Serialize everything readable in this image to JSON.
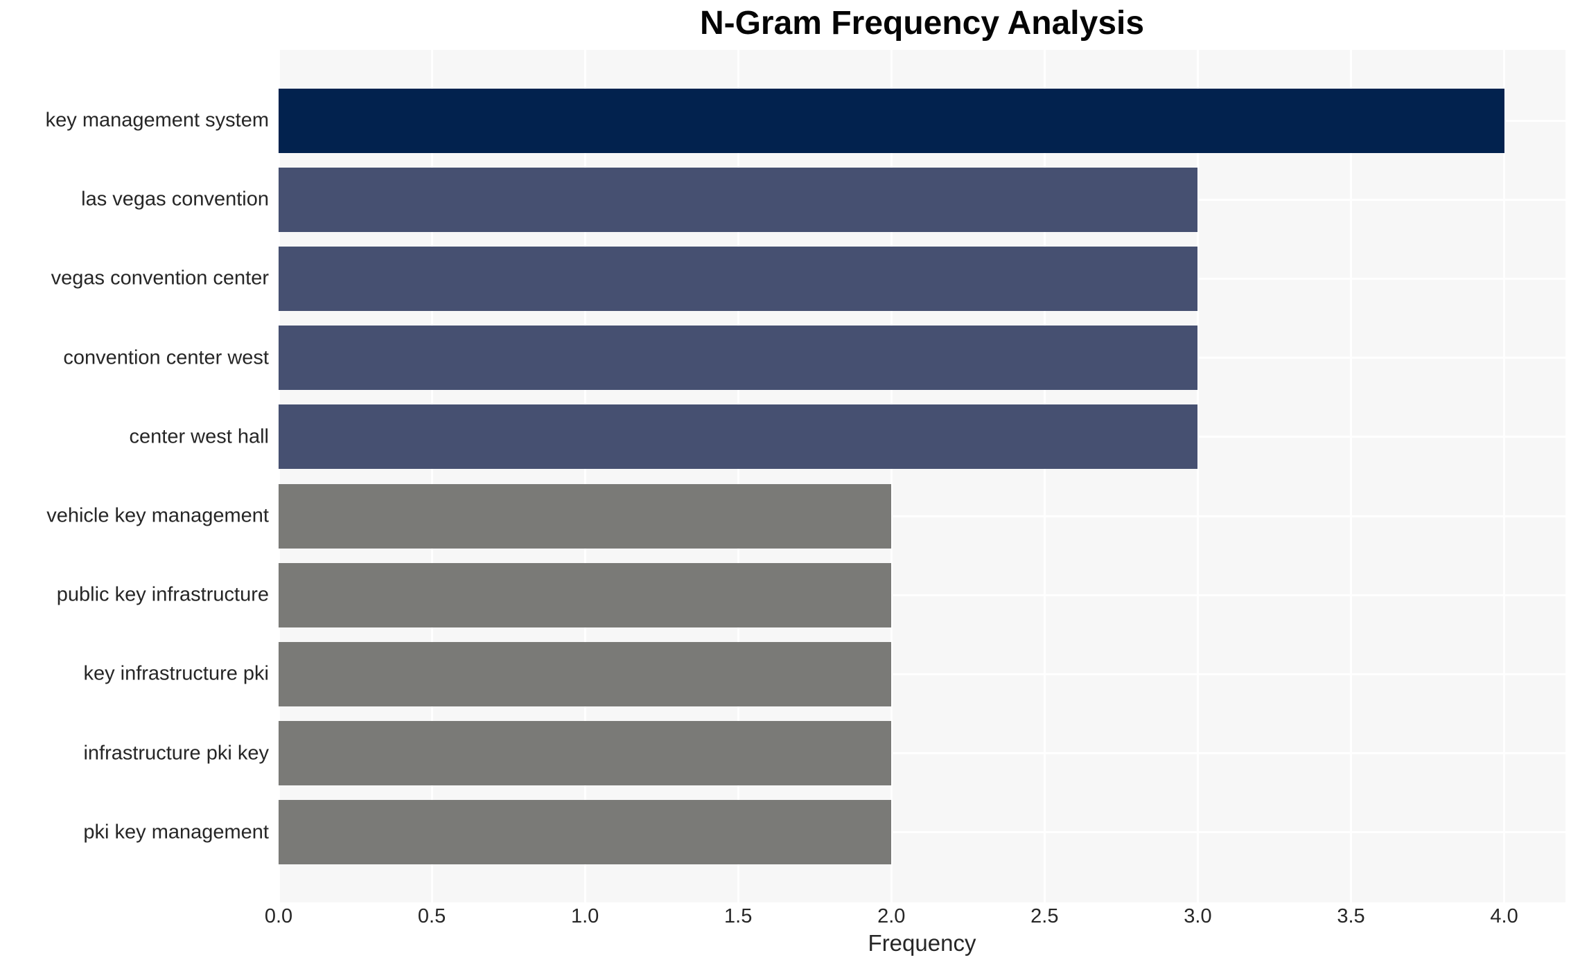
{
  "chart_data": {
    "type": "bar",
    "orientation": "horizontal",
    "title": "N-Gram Frequency Analysis",
    "xlabel": "Frequency",
    "ylabel": "",
    "categories": [
      "key management system",
      "las vegas convention",
      "vegas convention center",
      "convention center west",
      "center west hall",
      "vehicle key management",
      "public key infrastructure",
      "key infrastructure pki",
      "infrastructure pki key",
      "pki key management"
    ],
    "values": [
      4,
      3,
      3,
      3,
      3,
      2,
      2,
      2,
      2,
      2
    ],
    "bar_colors": [
      "#02224e",
      "#465071",
      "#465071",
      "#465071",
      "#465071",
      "#7a7a77",
      "#7a7a77",
      "#7a7a77",
      "#7a7a77",
      "#7a7a77"
    ],
    "xlim": [
      0,
      4.2
    ],
    "xticks": [
      0.0,
      0.5,
      1.0,
      1.5,
      2.0,
      2.5,
      3.0,
      3.5,
      4.0
    ],
    "xtick_labels": [
      "0.0",
      "0.5",
      "1.0",
      "1.5",
      "2.0",
      "2.5",
      "3.0",
      "3.5",
      "4.0"
    ],
    "grid": true,
    "legend": false
  },
  "style": {
    "plot_bg_color": "#f7f7f7",
    "grid_color": "#ffffff",
    "tick_text_color": "#262626",
    "title_color": "#050505"
  }
}
